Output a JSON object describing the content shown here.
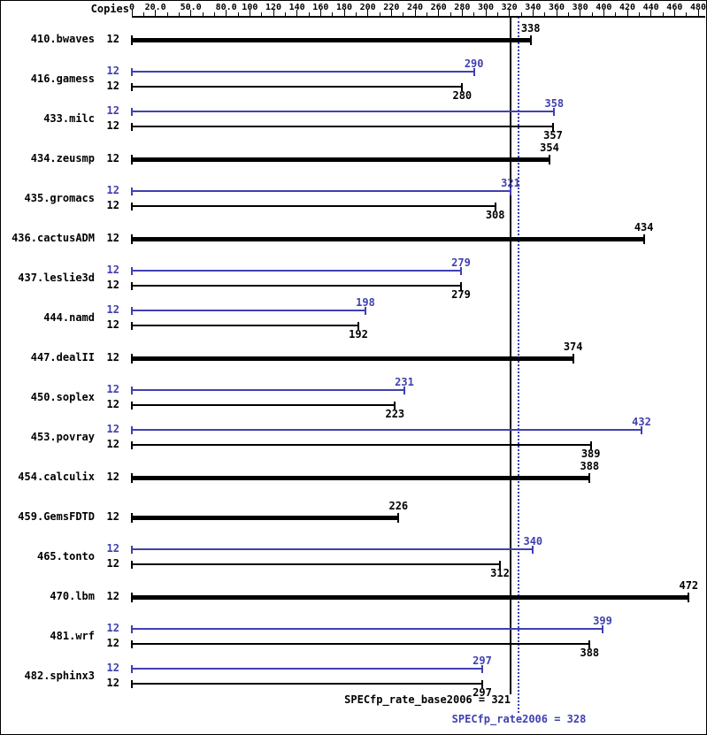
{
  "header": {
    "copies_label": "Copies"
  },
  "axis": {
    "xlim": [
      0,
      480
    ],
    "minor_step": 10,
    "labels": [
      {
        "value": 0,
        "text": "0"
      },
      {
        "value": 20,
        "text": "20.0"
      },
      {
        "value": 50,
        "text": "50.0"
      },
      {
        "value": 80,
        "text": "80.0"
      },
      {
        "value": 100,
        "text": "100"
      },
      {
        "value": 120,
        "text": "120"
      },
      {
        "value": 140,
        "text": "140"
      },
      {
        "value": 160,
        "text": "160"
      },
      {
        "value": 180,
        "text": "180"
      },
      {
        "value": 200,
        "text": "200"
      },
      {
        "value": 220,
        "text": "220"
      },
      {
        "value": 240,
        "text": "240"
      },
      {
        "value": 260,
        "text": "260"
      },
      {
        "value": 280,
        "text": "280"
      },
      {
        "value": 300,
        "text": "300"
      },
      {
        "value": 320,
        "text": "320"
      },
      {
        "value": 340,
        "text": "340"
      },
      {
        "value": 360,
        "text": "360"
      },
      {
        "value": 380,
        "text": "380"
      },
      {
        "value": 400,
        "text": "400"
      },
      {
        "value": 420,
        "text": "420"
      },
      {
        "value": 440,
        "text": "440"
      },
      {
        "value": 460,
        "text": "460"
      },
      {
        "value": 480,
        "text": "480"
      }
    ]
  },
  "chart_data": {
    "type": "bar",
    "orientation": "horizontal",
    "title": "",
    "xlabel": "",
    "ylabel": "Copies",
    "xlim": [
      0,
      480
    ],
    "categories": [
      "410.bwaves",
      "416.gamess",
      "433.milc",
      "434.zeusmp",
      "435.gromacs",
      "436.cactusADM",
      "437.leslie3d",
      "444.namd",
      "447.dealII",
      "450.soplex",
      "453.povray",
      "454.calculix",
      "459.GemsFDTD",
      "465.tonto",
      "470.lbm",
      "481.wrf",
      "482.sphinx3"
    ],
    "copies": [
      12,
      12,
      12,
      12,
      12,
      12,
      12,
      12,
      12,
      12,
      12,
      12,
      12,
      12,
      12,
      12,
      12
    ],
    "series": [
      {
        "name": "peak",
        "color": "#4040b2",
        "values": [
          null,
          290,
          358,
          null,
          321,
          null,
          279,
          198,
          null,
          231,
          432,
          null,
          null,
          340,
          null,
          399,
          297
        ]
      },
      {
        "name": "base",
        "color": "#000000",
        "values": [
          338,
          280,
          357,
          354,
          308,
          434,
          279,
          192,
          374,
          223,
          389,
          388,
          226,
          312,
          472,
          388,
          297
        ]
      }
    ],
    "reference_lines": [
      {
        "name": "base-mean",
        "label": "SPECfp_rate_base2006 = 321",
        "value": 321,
        "style": "solid",
        "color": "#000000"
      },
      {
        "name": "peak-mean",
        "label": "SPECfp_rate2006 = 328",
        "value": 328,
        "style": "dotted",
        "color": "#4040b2"
      }
    ]
  },
  "colors": {
    "peak": "#4040b2",
    "base": "#000000",
    "axis": "#000000",
    "background": "#ffffff"
  }
}
